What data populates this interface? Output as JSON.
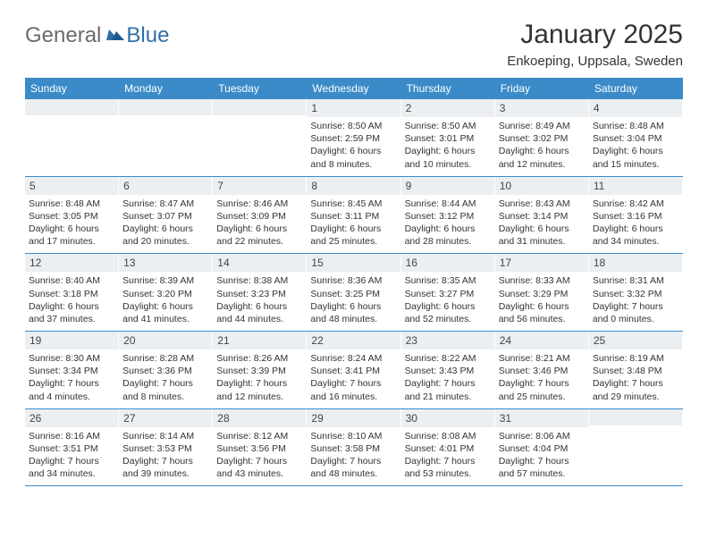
{
  "logo": {
    "text1": "General",
    "text2": "Blue"
  },
  "title": "January 2025",
  "subtitle": "Enkoeping, Uppsala, Sweden",
  "colors": {
    "header_bg": "#3b8bc8",
    "header_text": "#ffffff",
    "daynum_bg": "#ebeff2",
    "border": "#3b8bc8",
    "body_text": "#333333",
    "logo_gray": "#6b6b6b",
    "logo_blue": "#2f6fa8"
  },
  "day_names": [
    "Sunday",
    "Monday",
    "Tuesday",
    "Wednesday",
    "Thursday",
    "Friday",
    "Saturday"
  ],
  "weeks": [
    [
      {
        "blank": true
      },
      {
        "blank": true
      },
      {
        "blank": true
      },
      {
        "num": "1",
        "l1": "Sunrise: 8:50 AM",
        "l2": "Sunset: 2:59 PM",
        "l3": "Daylight: 6 hours",
        "l4": "and 8 minutes."
      },
      {
        "num": "2",
        "l1": "Sunrise: 8:50 AM",
        "l2": "Sunset: 3:01 PM",
        "l3": "Daylight: 6 hours",
        "l4": "and 10 minutes."
      },
      {
        "num": "3",
        "l1": "Sunrise: 8:49 AM",
        "l2": "Sunset: 3:02 PM",
        "l3": "Daylight: 6 hours",
        "l4": "and 12 minutes."
      },
      {
        "num": "4",
        "l1": "Sunrise: 8:48 AM",
        "l2": "Sunset: 3:04 PM",
        "l3": "Daylight: 6 hours",
        "l4": "and 15 minutes."
      }
    ],
    [
      {
        "num": "5",
        "l1": "Sunrise: 8:48 AM",
        "l2": "Sunset: 3:05 PM",
        "l3": "Daylight: 6 hours",
        "l4": "and 17 minutes."
      },
      {
        "num": "6",
        "l1": "Sunrise: 8:47 AM",
        "l2": "Sunset: 3:07 PM",
        "l3": "Daylight: 6 hours",
        "l4": "and 20 minutes."
      },
      {
        "num": "7",
        "l1": "Sunrise: 8:46 AM",
        "l2": "Sunset: 3:09 PM",
        "l3": "Daylight: 6 hours",
        "l4": "and 22 minutes."
      },
      {
        "num": "8",
        "l1": "Sunrise: 8:45 AM",
        "l2": "Sunset: 3:11 PM",
        "l3": "Daylight: 6 hours",
        "l4": "and 25 minutes."
      },
      {
        "num": "9",
        "l1": "Sunrise: 8:44 AM",
        "l2": "Sunset: 3:12 PM",
        "l3": "Daylight: 6 hours",
        "l4": "and 28 minutes."
      },
      {
        "num": "10",
        "l1": "Sunrise: 8:43 AM",
        "l2": "Sunset: 3:14 PM",
        "l3": "Daylight: 6 hours",
        "l4": "and 31 minutes."
      },
      {
        "num": "11",
        "l1": "Sunrise: 8:42 AM",
        "l2": "Sunset: 3:16 PM",
        "l3": "Daylight: 6 hours",
        "l4": "and 34 minutes."
      }
    ],
    [
      {
        "num": "12",
        "l1": "Sunrise: 8:40 AM",
        "l2": "Sunset: 3:18 PM",
        "l3": "Daylight: 6 hours",
        "l4": "and 37 minutes."
      },
      {
        "num": "13",
        "l1": "Sunrise: 8:39 AM",
        "l2": "Sunset: 3:20 PM",
        "l3": "Daylight: 6 hours",
        "l4": "and 41 minutes."
      },
      {
        "num": "14",
        "l1": "Sunrise: 8:38 AM",
        "l2": "Sunset: 3:23 PM",
        "l3": "Daylight: 6 hours",
        "l4": "and 44 minutes."
      },
      {
        "num": "15",
        "l1": "Sunrise: 8:36 AM",
        "l2": "Sunset: 3:25 PM",
        "l3": "Daylight: 6 hours",
        "l4": "and 48 minutes."
      },
      {
        "num": "16",
        "l1": "Sunrise: 8:35 AM",
        "l2": "Sunset: 3:27 PM",
        "l3": "Daylight: 6 hours",
        "l4": "and 52 minutes."
      },
      {
        "num": "17",
        "l1": "Sunrise: 8:33 AM",
        "l2": "Sunset: 3:29 PM",
        "l3": "Daylight: 6 hours",
        "l4": "and 56 minutes."
      },
      {
        "num": "18",
        "l1": "Sunrise: 8:31 AM",
        "l2": "Sunset: 3:32 PM",
        "l3": "Daylight: 7 hours",
        "l4": "and 0 minutes."
      }
    ],
    [
      {
        "num": "19",
        "l1": "Sunrise: 8:30 AM",
        "l2": "Sunset: 3:34 PM",
        "l3": "Daylight: 7 hours",
        "l4": "and 4 minutes."
      },
      {
        "num": "20",
        "l1": "Sunrise: 8:28 AM",
        "l2": "Sunset: 3:36 PM",
        "l3": "Daylight: 7 hours",
        "l4": "and 8 minutes."
      },
      {
        "num": "21",
        "l1": "Sunrise: 8:26 AM",
        "l2": "Sunset: 3:39 PM",
        "l3": "Daylight: 7 hours",
        "l4": "and 12 minutes."
      },
      {
        "num": "22",
        "l1": "Sunrise: 8:24 AM",
        "l2": "Sunset: 3:41 PM",
        "l3": "Daylight: 7 hours",
        "l4": "and 16 minutes."
      },
      {
        "num": "23",
        "l1": "Sunrise: 8:22 AM",
        "l2": "Sunset: 3:43 PM",
        "l3": "Daylight: 7 hours",
        "l4": "and 21 minutes."
      },
      {
        "num": "24",
        "l1": "Sunrise: 8:21 AM",
        "l2": "Sunset: 3:46 PM",
        "l3": "Daylight: 7 hours",
        "l4": "and 25 minutes."
      },
      {
        "num": "25",
        "l1": "Sunrise: 8:19 AM",
        "l2": "Sunset: 3:48 PM",
        "l3": "Daylight: 7 hours",
        "l4": "and 29 minutes."
      }
    ],
    [
      {
        "num": "26",
        "l1": "Sunrise: 8:16 AM",
        "l2": "Sunset: 3:51 PM",
        "l3": "Daylight: 7 hours",
        "l4": "and 34 minutes."
      },
      {
        "num": "27",
        "l1": "Sunrise: 8:14 AM",
        "l2": "Sunset: 3:53 PM",
        "l3": "Daylight: 7 hours",
        "l4": "and 39 minutes."
      },
      {
        "num": "28",
        "l1": "Sunrise: 8:12 AM",
        "l2": "Sunset: 3:56 PM",
        "l3": "Daylight: 7 hours",
        "l4": "and 43 minutes."
      },
      {
        "num": "29",
        "l1": "Sunrise: 8:10 AM",
        "l2": "Sunset: 3:58 PM",
        "l3": "Daylight: 7 hours",
        "l4": "and 48 minutes."
      },
      {
        "num": "30",
        "l1": "Sunrise: 8:08 AM",
        "l2": "Sunset: 4:01 PM",
        "l3": "Daylight: 7 hours",
        "l4": "and 53 minutes."
      },
      {
        "num": "31",
        "l1": "Sunrise: 8:06 AM",
        "l2": "Sunset: 4:04 PM",
        "l3": "Daylight: 7 hours",
        "l4": "and 57 minutes."
      },
      {
        "blank": true
      }
    ]
  ]
}
